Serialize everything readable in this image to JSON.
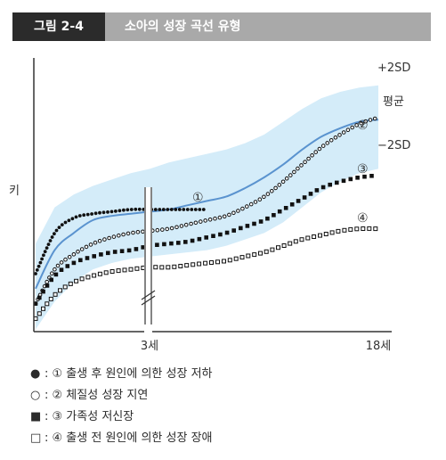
{
  "header": {
    "figure_number": "그림 2-4",
    "title": "소아의 성장 곡선 유형"
  },
  "chart_data": {
    "type": "line",
    "title": "소아의 성장 곡선 유형",
    "ylabel": "키",
    "x_ticks": [
      "3세",
      "18세"
    ],
    "band_labels": {
      "upper": "+2SD",
      "mean": "평균",
      "lower": "−2SD"
    },
    "colors": {
      "band": "#d4ecf9",
      "mean_line": "#5a93cf",
      "markers": "#111111"
    },
    "x": [
      0,
      1,
      2,
      3,
      4,
      5,
      6,
      7,
      8,
      9,
      10,
      11,
      12,
      13,
      14,
      15,
      16,
      17,
      18
    ],
    "band_upper": [
      34,
      51,
      57,
      61,
      64,
      67,
      69,
      72,
      74,
      76,
      78,
      81,
      85,
      91,
      97,
      102,
      105,
      107,
      108
    ],
    "mean": [
      13,
      31,
      39,
      45,
      47,
      48,
      49,
      50,
      52,
      54,
      56,
      60,
      65,
      71,
      78,
      84,
      88,
      91,
      92
    ],
    "band_lower": [
      -6,
      7,
      16,
      22,
      25,
      27,
      28,
      29,
      30,
      31,
      33,
      36,
      39,
      44,
      51,
      58,
      63,
      67,
      69
    ],
    "series": [
      {
        "marker": "●",
        "number": "①",
        "style": "filled-circle",
        "points": [
          [
            0,
            20
          ],
          [
            1,
            39
          ],
          [
            2,
            46
          ],
          [
            3,
            48
          ],
          [
            4,
            49
          ],
          [
            5,
            50
          ],
          [
            6,
            50
          ],
          [
            7,
            50
          ],
          [
            8,
            50
          ],
          [
            9,
            50
          ]
        ]
      },
      {
        "marker": "○",
        "number": "②",
        "style": "open-circle",
        "points": [
          [
            0,
            6
          ],
          [
            1,
            22
          ],
          [
            2,
            29
          ],
          [
            3,
            34
          ],
          [
            4,
            37
          ],
          [
            5,
            39
          ],
          [
            6,
            40
          ],
          [
            7,
            41
          ],
          [
            8,
            43
          ],
          [
            9,
            45
          ],
          [
            10,
            47
          ],
          [
            11,
            51
          ],
          [
            12,
            56
          ],
          [
            13,
            63
          ],
          [
            14,
            71
          ],
          [
            15,
            79
          ],
          [
            16,
            85
          ],
          [
            17,
            90
          ],
          [
            18,
            93
          ]
        ]
      },
      {
        "marker": "■",
        "number": "③",
        "style": "filled-square",
        "points": [
          [
            0,
            6
          ],
          [
            1,
            19
          ],
          [
            2,
            25
          ],
          [
            3,
            28
          ],
          [
            4,
            30
          ],
          [
            5,
            31
          ],
          [
            6,
            33
          ],
          [
            7,
            34
          ],
          [
            8,
            35
          ],
          [
            9,
            37
          ],
          [
            10,
            39
          ],
          [
            11,
            42
          ],
          [
            12,
            45
          ],
          [
            13,
            50
          ],
          [
            14,
            55
          ],
          [
            15,
            60
          ],
          [
            16,
            63
          ],
          [
            17,
            65
          ],
          [
            18,
            66
          ]
        ]
      },
      {
        "marker": "□",
        "number": "④",
        "style": "open-square",
        "points": [
          [
            0,
            -1
          ],
          [
            1,
            10
          ],
          [
            2,
            16
          ],
          [
            3,
            19
          ],
          [
            4,
            21
          ],
          [
            5,
            22
          ],
          [
            6,
            23
          ],
          [
            7,
            23
          ],
          [
            8,
            24
          ],
          [
            9,
            25
          ],
          [
            10,
            26
          ],
          [
            11,
            28
          ],
          [
            12,
            30
          ],
          [
            13,
            33
          ],
          [
            14,
            36
          ],
          [
            15,
            38
          ],
          [
            16,
            40
          ],
          [
            17,
            41
          ],
          [
            18,
            41
          ]
        ]
      }
    ],
    "legend": [
      {
        "marker": "●",
        "text": "① 출생 후 원인에 의한 성장 저하"
      },
      {
        "marker": "○",
        "text": "② 체질성 성장 지연"
      },
      {
        "marker": "■",
        "text": "③ 가족성 저신장"
      },
      {
        "marker": "□",
        "text": "④ 출생 전 원인에 의한 성장 장애"
      }
    ]
  }
}
